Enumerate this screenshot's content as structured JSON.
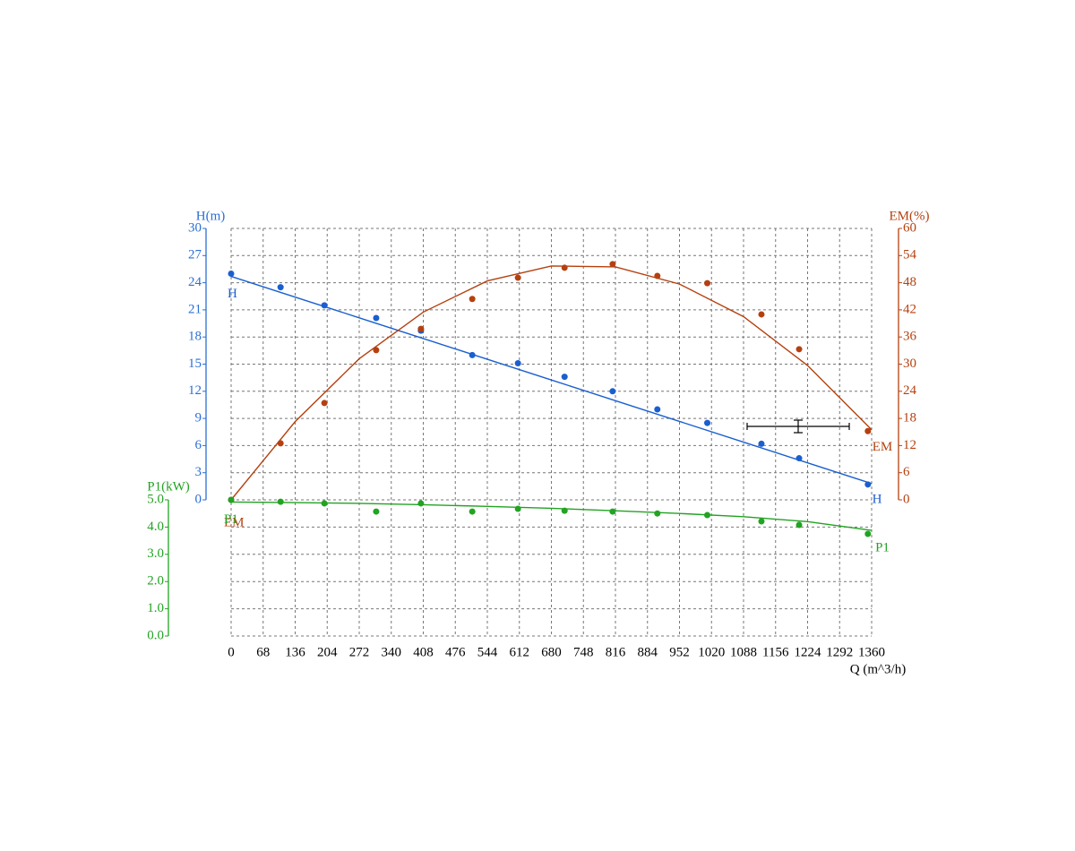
{
  "chart_data": {
    "type": "line",
    "x_label": "Q (m^3/h)",
    "xlim": [
      0,
      1360
    ],
    "xticks": [
      0,
      68,
      136,
      204,
      272,
      340,
      408,
      476,
      544,
      612,
      680,
      748,
      816,
      884,
      952,
      1020,
      1088,
      1156,
      1224,
      1292,
      1360
    ],
    "grid": true,
    "axes": [
      {
        "title": "H(m)",
        "color": "#2a6fd6",
        "lim": [
          0,
          30
        ],
        "ticks": [
          0,
          3,
          6,
          9,
          12,
          15,
          18,
          21,
          24,
          27,
          30
        ]
      },
      {
        "title": "EM(%)",
        "color": "#b5400f",
        "lim": [
          0,
          60
        ],
        "ticks": [
          0,
          6,
          12,
          18,
          24,
          30,
          36,
          42,
          48,
          54,
          60
        ]
      },
      {
        "title": "P1(kW)",
        "color": "#22a322",
        "lim": [
          0,
          5
        ],
        "ticks": [
          {
            "value": 0,
            "label": "0.0"
          },
          {
            "value": 1,
            "label": "1.0"
          },
          {
            "value": 2,
            "label": "2.0"
          },
          {
            "value": 3,
            "label": "3.0"
          },
          {
            "value": 4,
            "label": "4.0"
          },
          {
            "value": 5,
            "label": "5.0"
          }
        ]
      }
    ],
    "x": [
      0,
      105,
      198,
      308,
      403,
      512,
      609,
      708,
      810,
      905,
      1011,
      1126,
      1206,
      1352
    ],
    "fit_x": [
      0,
      136,
      272,
      408,
      544,
      680,
      816,
      952,
      1088,
      1224,
      1360
    ],
    "series": [
      {
        "name": "H",
        "axis": 0,
        "color": "#1a5fd0",
        "values": [
          25.0,
          23.5,
          21.5,
          20.1,
          18.7,
          16.0,
          15.1,
          13.6,
          12.0,
          10.0,
          8.5,
          6.2,
          4.6,
          1.7
        ],
        "fit_values": [
          24.7,
          22.41,
          20.12,
          17.83,
          15.54,
          13.25,
          10.96,
          8.67,
          6.38,
          4.09,
          1.8
        ]
      },
      {
        "name": "EM",
        "axis": 1,
        "color": "#b5400f",
        "values": [
          0,
          12.5,
          21.4,
          33.1,
          37.8,
          44.4,
          49.1,
          51.3,
          52.1,
          49.5,
          47.9,
          41.0,
          33.3,
          15.2
        ],
        "fit_values": [
          0,
          17.3,
          31.2,
          41.5,
          48.4,
          51.7,
          51.5,
          47.7,
          40.5,
          29.7,
          15.5
        ]
      },
      {
        "name": "P1",
        "axis": 2,
        "color": "#22a322",
        "values": [
          5.0,
          4.93,
          4.87,
          4.57,
          4.87,
          4.57,
          4.67,
          4.6,
          4.57,
          4.5,
          4.44,
          4.21,
          4.08,
          3.75
        ],
        "fit_values": [
          4.92,
          4.9,
          4.87,
          4.82,
          4.76,
          4.69,
          4.6,
          4.5,
          4.38,
          4.2,
          3.88
        ]
      }
    ]
  }
}
